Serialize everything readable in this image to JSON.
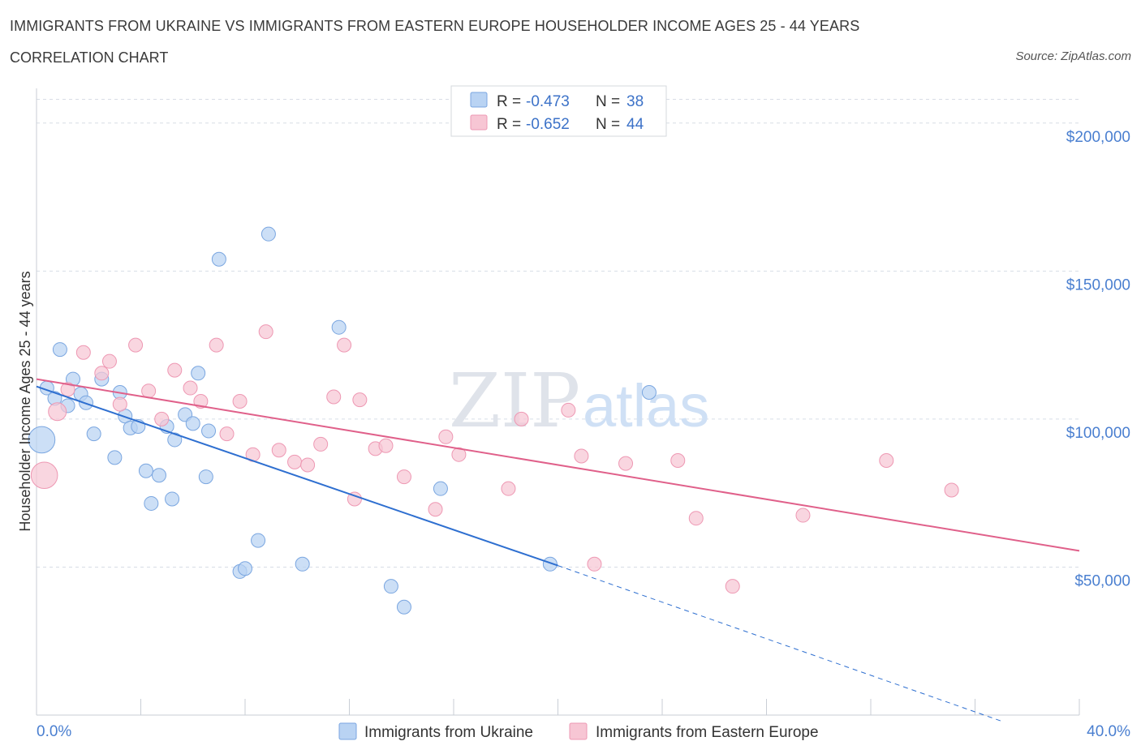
{
  "title": "IMMIGRANTS FROM UKRAINE VS IMMIGRANTS FROM EASTERN EUROPE HOUSEHOLDER INCOME AGES 25 - 44 YEARS",
  "subtitle": "CORRELATION CHART",
  "source": "Source: ZipAtlas.com",
  "watermark": {
    "zip": "ZIP",
    "atlas": "atlas"
  },
  "legend": {
    "r_label": "R =",
    "n_label": "N =",
    "items": [
      {
        "r": "-0.473",
        "n": "38"
      },
      {
        "r": "-0.652",
        "n": "44"
      }
    ]
  },
  "bottom_legend": [
    "Immigrants from Ukraine",
    "Immigrants from Eastern Europe"
  ],
  "colors": {
    "ukraine_fill": "#b9d3f3",
    "ukraine_stroke": "#7aa6e0",
    "ukraine_line": "#2e6fd0",
    "eeurope_fill": "#f7c6d4",
    "eeurope_stroke": "#ee98b3",
    "eeurope_line": "#e0608a",
    "grid": "#d8dde6",
    "tick_label": "#4a7fd0"
  },
  "chart_data": {
    "type": "scatter",
    "ylabel": "Householder Income Ages 25 - 44 years",
    "xlim": [
      0,
      40
    ],
    "ylim": [
      0,
      215000
    ],
    "x_tick_labels": [
      "0.0%",
      "40.0%"
    ],
    "y_ticks": [
      50000,
      100000,
      150000,
      200000
    ],
    "y_tick_labels": [
      "$50,000",
      "$100,000",
      "$150,000",
      "$200,000"
    ],
    "grid": true,
    "series": [
      {
        "name": "Immigrants from Ukraine",
        "r": -0.473,
        "n": 38,
        "points": [
          [
            0.2,
            93000,
            1100
          ],
          [
            0.4,
            110500,
            300
          ],
          [
            0.7,
            107000,
            300
          ],
          [
            0.9,
            123500,
            300
          ],
          [
            1.2,
            104500,
            300
          ],
          [
            1.4,
            113500,
            300
          ],
          [
            1.7,
            108500,
            300
          ],
          [
            1.9,
            105500,
            300
          ],
          [
            2.2,
            95000,
            300
          ],
          [
            2.5,
            113500,
            300
          ],
          [
            3.0,
            87000,
            300
          ],
          [
            3.2,
            109000,
            300
          ],
          [
            3.4,
            101000,
            300
          ],
          [
            3.6,
            97000,
            300
          ],
          [
            3.9,
            97500,
            300
          ],
          [
            4.2,
            82500,
            300
          ],
          [
            4.4,
            71500,
            300
          ],
          [
            4.7,
            81000,
            300
          ],
          [
            5.0,
            97500,
            300
          ],
          [
            5.2,
            73000,
            300
          ],
          [
            5.3,
            93000,
            300
          ],
          [
            5.7,
            101500,
            300
          ],
          [
            6.0,
            98500,
            300
          ],
          [
            6.2,
            115500,
            300
          ],
          [
            6.5,
            80500,
            300
          ],
          [
            6.6,
            96000,
            300
          ],
          [
            7.0,
            154000,
            300
          ],
          [
            7.8,
            48500,
            300
          ],
          [
            8.0,
            49500,
            300
          ],
          [
            8.5,
            59000,
            300
          ],
          [
            8.9,
            162500,
            300
          ],
          [
            10.2,
            51000,
            300
          ],
          [
            11.6,
            131000,
            300
          ],
          [
            13.6,
            43500,
            300
          ],
          [
            14.1,
            36500,
            300
          ],
          [
            15.5,
            76500,
            300
          ],
          [
            19.7,
            51000,
            300
          ],
          [
            23.5,
            109000,
            300
          ]
        ]
      },
      {
        "name": "Immigrants from Eastern Europe",
        "r": -0.652,
        "n": 44,
        "points": [
          [
            0.3,
            81000,
            1100
          ],
          [
            0.8,
            102500,
            500
          ],
          [
            1.2,
            110000,
            300
          ],
          [
            1.8,
            122500,
            300
          ],
          [
            2.5,
            115500,
            300
          ],
          [
            2.8,
            119500,
            300
          ],
          [
            3.2,
            105000,
            300
          ],
          [
            3.8,
            125000,
            300
          ],
          [
            4.3,
            109500,
            300
          ],
          [
            4.8,
            100000,
            300
          ],
          [
            5.3,
            116500,
            300
          ],
          [
            5.9,
            110500,
            300
          ],
          [
            6.3,
            106000,
            300
          ],
          [
            6.9,
            125000,
            300
          ],
          [
            7.3,
            95000,
            300
          ],
          [
            7.8,
            106000,
            300
          ],
          [
            8.3,
            88000,
            300
          ],
          [
            8.8,
            129500,
            300
          ],
          [
            9.3,
            89500,
            300
          ],
          [
            9.9,
            85500,
            300
          ],
          [
            10.4,
            84500,
            300
          ],
          [
            10.9,
            91500,
            300
          ],
          [
            11.4,
            107500,
            300
          ],
          [
            11.8,
            125000,
            300
          ],
          [
            12.2,
            73000,
            300
          ],
          [
            12.4,
            106500,
            300
          ],
          [
            13.0,
            90000,
            300
          ],
          [
            13.4,
            91000,
            300
          ],
          [
            14.1,
            80500,
            300
          ],
          [
            15.3,
            69500,
            300
          ],
          [
            15.7,
            94000,
            300
          ],
          [
            16.2,
            88000,
            300
          ],
          [
            18.1,
            76500,
            300
          ],
          [
            18.6,
            100000,
            300
          ],
          [
            20.4,
            103000,
            300
          ],
          [
            20.9,
            87500,
            300
          ],
          [
            21.4,
            51000,
            300
          ],
          [
            22.6,
            85000,
            300
          ],
          [
            24.6,
            86000,
            300
          ],
          [
            25.3,
            66500,
            300
          ],
          [
            26.7,
            43500,
            300
          ],
          [
            29.4,
            67500,
            300
          ],
          [
            32.6,
            86000,
            300
          ],
          [
            35.1,
            76000,
            300
          ]
        ]
      }
    ],
    "trend_lines": [
      {
        "series": "Immigrants from Ukraine",
        "x_start": 0,
        "y_start": 111000,
        "x_solid_end": 20,
        "y_solid_end": 50500,
        "x_end": 37,
        "y_end": -2000,
        "extension": "dashed"
      },
      {
        "series": "Immigrants from Eastern Europe",
        "x_start": 0,
        "y_start": 113500,
        "x_end": 40,
        "y_end": 55500,
        "extension": "none"
      }
    ]
  }
}
